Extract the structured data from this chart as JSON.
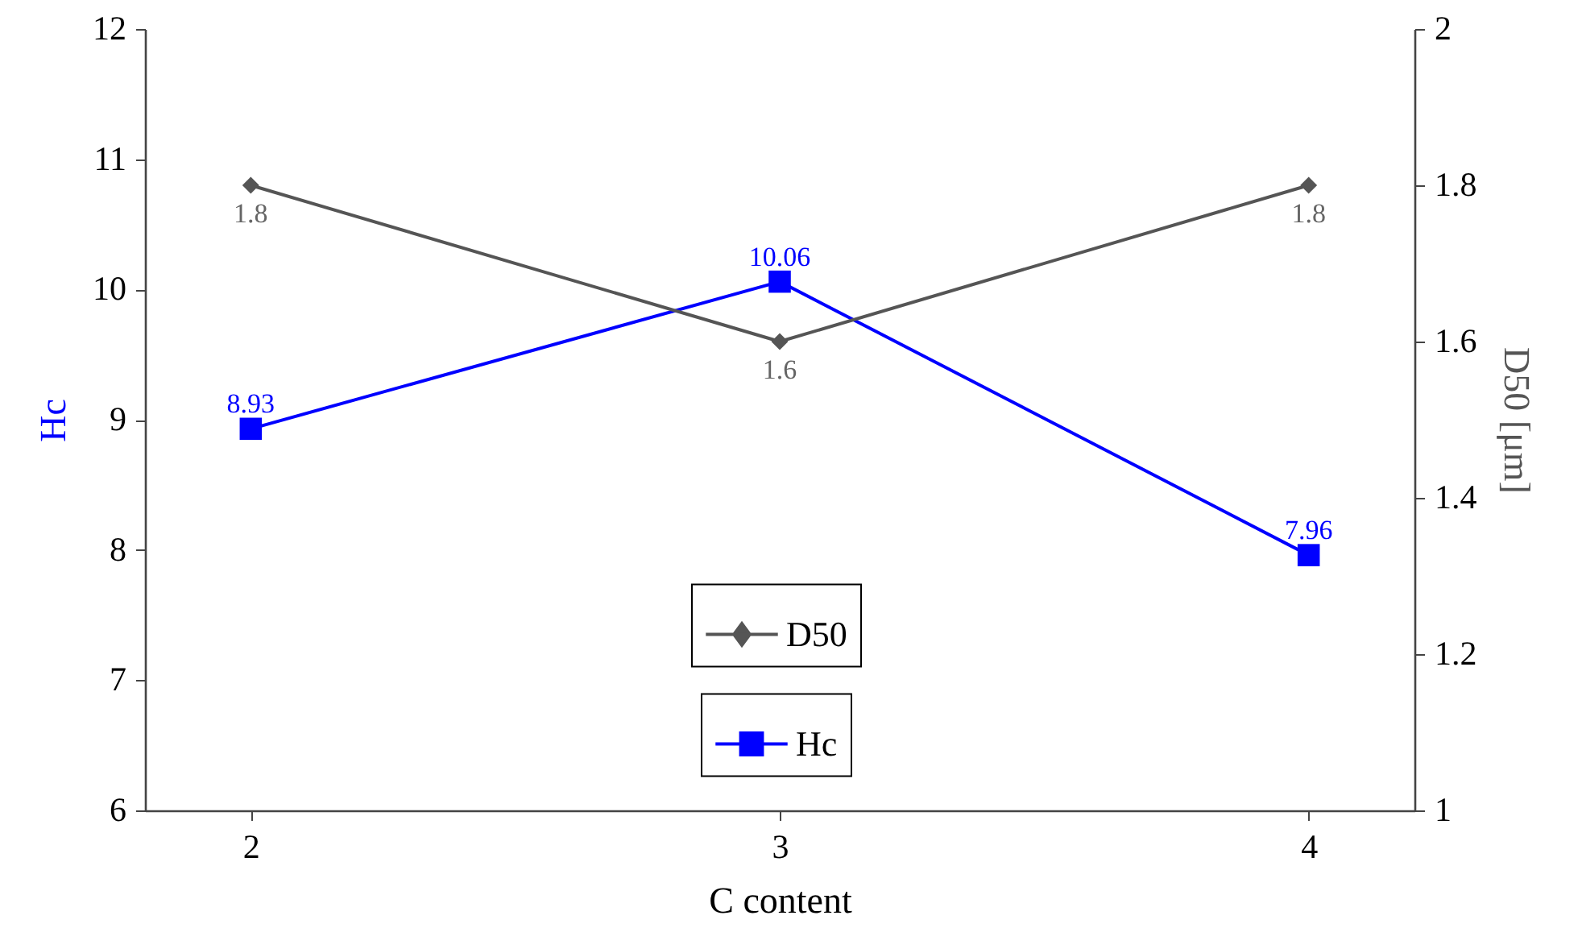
{
  "chart_data": {
    "type": "line",
    "x": [
      2,
      3,
      4
    ],
    "xlabel": "C content",
    "ylabel": "Hc",
    "y2label": "D50 [μm]",
    "xlim": [
      1.8,
      4.2
    ],
    "xticks": [
      2,
      3,
      4
    ],
    "ylim": [
      6,
      12
    ],
    "yticks": [
      6,
      7,
      8,
      9,
      10,
      11,
      12
    ],
    "y2lim": [
      1,
      2
    ],
    "y2ticks": [
      1,
      1.2,
      1.4,
      1.6,
      1.8,
      2
    ],
    "series": [
      {
        "name": "Hc",
        "color": "#0000ff",
        "values": [
          8.93,
          10.06,
          7.96
        ],
        "marker": "square"
      },
      {
        "name": "D50",
        "color": "#555555",
        "values": [
          1.8,
          1.6,
          1.8
        ],
        "axis": "y2",
        "marker": "diamond"
      }
    ],
    "data_labels": true,
    "legend": "bottom",
    "grid": false,
    "line_style": "solid"
  }
}
